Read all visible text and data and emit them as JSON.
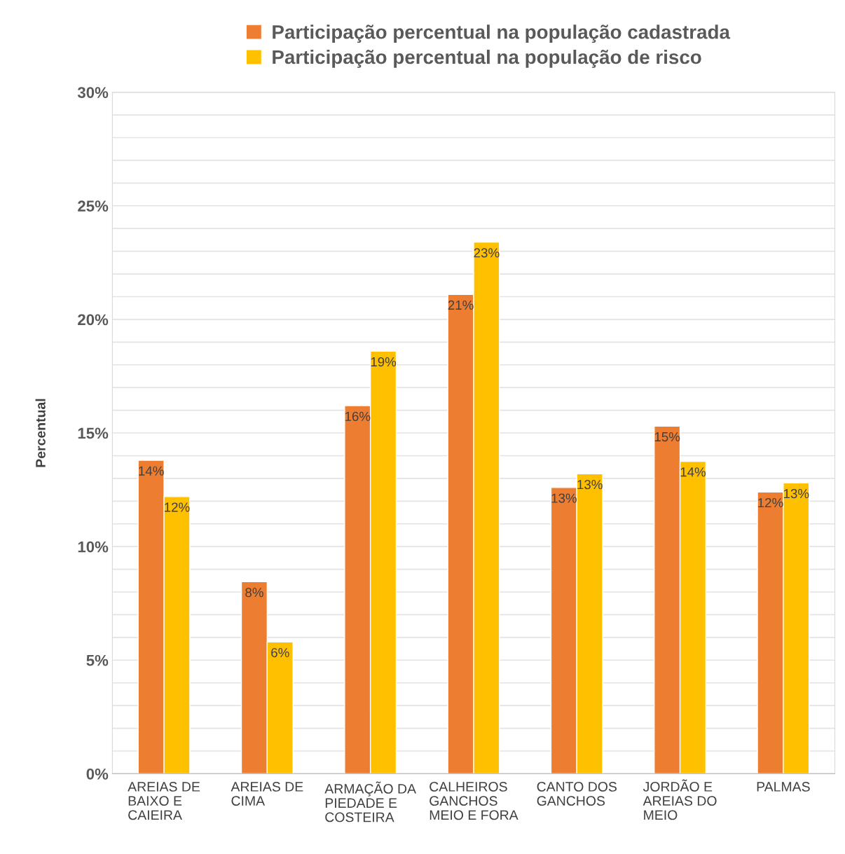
{
  "chart_data": {
    "type": "bar",
    "ylabel": "Percentual",
    "categories": [
      "AREIAS DE\nBAIXO E\nCAIEIRA",
      "AREIAS DE\nCIMA",
      "ARMAÇÃO DA\nPIEDADE E\nCOSTEIRA",
      "CALHEIROS\nGANCHOS\nMEIO E FORA",
      "CANTO DOS\nGANCHOS",
      "JORDÃO E\nAREIAS DO\nMEIO",
      "PALMAS"
    ],
    "series": [
      {
        "name": "Participação percentual na população cadastrada",
        "color": "#ed7d31",
        "values": [
          13.8,
          8.45,
          16.2,
          21.1,
          12.6,
          15.3,
          12.4
        ],
        "value_labels": [
          "14%",
          "8%",
          "16%",
          "21%",
          "13%",
          "15%",
          "12%"
        ]
      },
      {
        "name": "Participação percentual na população de risco",
        "color": "#ffc000",
        "values": [
          12.2,
          5.8,
          18.6,
          23.4,
          13.2,
          13.75,
          12.8
        ],
        "value_labels": [
          "12%",
          "6%",
          "19%",
          "23%",
          "13%",
          "14%",
          "13%"
        ]
      }
    ],
    "ylim": [
      0,
      30
    ],
    "yticks": [
      {
        "value": 0,
        "label": "0%"
      },
      {
        "value": 1,
        "label": null
      },
      {
        "value": 2,
        "label": null
      },
      {
        "value": 3,
        "label": null
      },
      {
        "value": 4,
        "label": null
      },
      {
        "value": 5,
        "label": "5%"
      },
      {
        "value": 6,
        "label": null
      },
      {
        "value": 7,
        "label": null
      },
      {
        "value": 8,
        "label": null
      },
      {
        "value": 9,
        "label": null
      },
      {
        "value": 10,
        "label": "10%"
      },
      {
        "value": 11,
        "label": null
      },
      {
        "value": 12,
        "label": null
      },
      {
        "value": 13,
        "label": null
      },
      {
        "value": 14,
        "label": null
      },
      {
        "value": 15,
        "label": "15%"
      },
      {
        "value": 16,
        "label": null
      },
      {
        "value": 17,
        "label": null
      },
      {
        "value": 18,
        "label": null
      },
      {
        "value": 19,
        "label": null
      },
      {
        "value": 20,
        "label": "20%"
      },
      {
        "value": 21,
        "label": null
      },
      {
        "value": 22,
        "label": null
      },
      {
        "value": 23,
        "label": null
      },
      {
        "value": 24,
        "label": null
      },
      {
        "value": 25,
        "label": "25%"
      },
      {
        "value": 26,
        "label": null
      },
      {
        "value": 27,
        "label": null
      },
      {
        "value": 28,
        "label": null
      },
      {
        "value": 29,
        "label": null
      },
      {
        "value": 30,
        "label": "30%"
      }
    ],
    "grid": "y",
    "legend": "top"
  }
}
